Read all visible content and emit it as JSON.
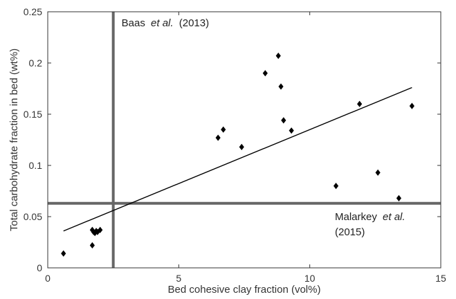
{
  "chart_data": {
    "type": "scatter",
    "xlabel": "Bed cohesive clay fraction (vol%)",
    "ylabel": "Total carbohydrate fraction in bed (wt%)",
    "xlim": [
      0,
      15
    ],
    "ylim": [
      0,
      0.25
    ],
    "xticks": [
      0,
      5,
      10,
      15
    ],
    "yticks": [
      0,
      0.05,
      0.1,
      0.15,
      0.2,
      0.25
    ],
    "xtick_labels": [
      "0",
      "5",
      "10",
      "15"
    ],
    "ytick_labels": [
      "0",
      "0.05",
      "0.1",
      "0.15",
      "0.2",
      "0.25"
    ],
    "grid": false,
    "points": [
      {
        "x": 0.6,
        "y": 0.014
      },
      {
        "x": 1.7,
        "y": 0.022
      },
      {
        "x": 1.7,
        "y": 0.037
      },
      {
        "x": 1.75,
        "y": 0.035
      },
      {
        "x": 1.8,
        "y": 0.034
      },
      {
        "x": 1.85,
        "y": 0.036
      },
      {
        "x": 1.9,
        "y": 0.035
      },
      {
        "x": 2.0,
        "y": 0.037
      },
      {
        "x": 6.5,
        "y": 0.127
      },
      {
        "x": 6.7,
        "y": 0.135
      },
      {
        "x": 7.4,
        "y": 0.118
      },
      {
        "x": 8.3,
        "y": 0.19
      },
      {
        "x": 8.8,
        "y": 0.207
      },
      {
        "x": 8.9,
        "y": 0.177
      },
      {
        "x": 9.0,
        "y": 0.144
      },
      {
        "x": 9.3,
        "y": 0.134
      },
      {
        "x": 11.0,
        "y": 0.08
      },
      {
        "x": 11.9,
        "y": 0.16
      },
      {
        "x": 12.6,
        "y": 0.093
      },
      {
        "x": 13.4,
        "y": 0.068
      },
      {
        "x": 13.9,
        "y": 0.158
      }
    ],
    "trendline": {
      "x1": 0.6,
      "y1": 0.036,
      "x2": 13.9,
      "y2": 0.176
    },
    "reference_lines": [
      {
        "orientation": "vertical",
        "x": 2.5,
        "color": "#666666"
      },
      {
        "orientation": "horizontal",
        "y": 0.063,
        "color": "#666666"
      }
    ],
    "annotations": {
      "baas": {
        "author": "Baas",
        "etal": "et al.",
        "year": "(2013)"
      },
      "malarkey": {
        "author": "Malarkey",
        "etal": "et al.",
        "year": "(2015)"
      }
    }
  }
}
